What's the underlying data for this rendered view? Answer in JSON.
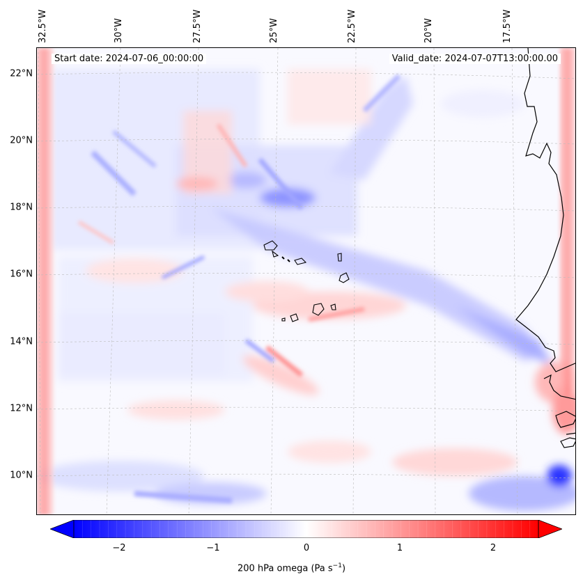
{
  "header": {
    "start_date": "Start date: 2024-07-06_00:00:00",
    "valid_date": "Valid_date: 2024-07-07T13:00:00.00"
  },
  "axes": {
    "lon_labels": [
      "32.5°W",
      "30°W",
      "27.5°W",
      "25°W",
      "22.5°W",
      "20°W",
      "17.5°W"
    ],
    "lat_labels": [
      "22°N",
      "20°N",
      "18°N",
      "16°N",
      "14°N",
      "12°N",
      "10°N"
    ]
  },
  "colorbar": {
    "ticks": [
      "−2",
      "−1",
      "0",
      "1",
      "2"
    ],
    "label": "200 hPa omega (Pa s",
    "label_exp": "−1",
    "label_end": ")",
    "min": -2.7,
    "max": 2.7,
    "colors": {
      "negative": "#0000ff",
      "zero": "#ffffff",
      "positive": "#ff0000"
    }
  },
  "map": {
    "colors": {
      "coast": "#000000",
      "grid": "#bbbbbb",
      "background": "#f7f7ff"
    }
  }
}
